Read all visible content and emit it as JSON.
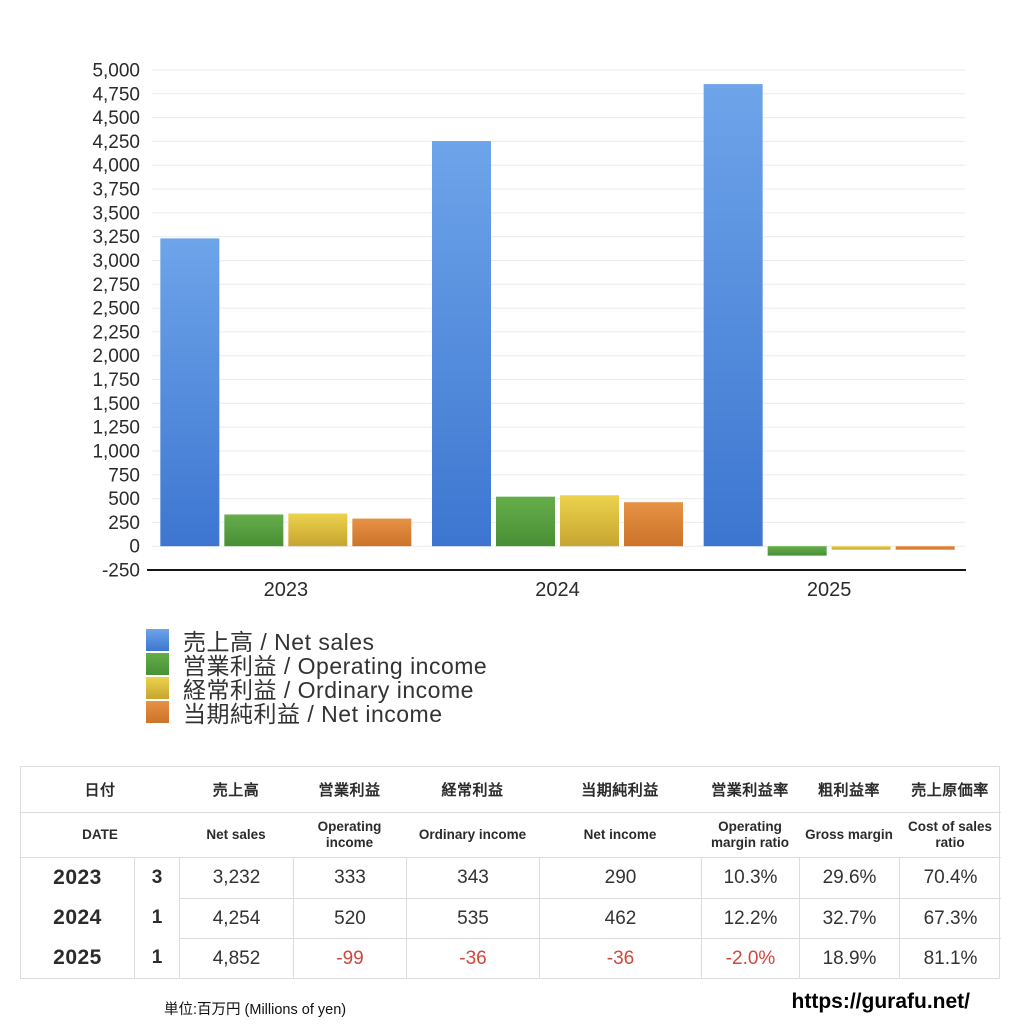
{
  "chart_data": {
    "type": "bar",
    "title": "",
    "xlabel": "",
    "ylabel": "",
    "categories": [
      "2023",
      "2024",
      "2025"
    ],
    "series": [
      {
        "name": "売上高 / Net sales",
        "values": [
          3232,
          4254,
          4852
        ],
        "color_top": "#6ea4e9",
        "color_bottom": "#3d76d1"
      },
      {
        "name": "営業利益 / Operating income",
        "values": [
          333,
          520,
          -99
        ],
        "color_top": "#66ae4b",
        "color_bottom": "#478f34"
      },
      {
        "name": "経常利益 / Ordinary income",
        "values": [
          343,
          535,
          -36
        ],
        "color_top": "#ecd24d",
        "color_bottom": "#c7a531"
      },
      {
        "name": "当期純利益 / Net income",
        "values": [
          290,
          462,
          -36
        ],
        "color_top": "#e69245",
        "color_bottom": "#cc7329"
      }
    ],
    "ylim": [
      -250,
      5000
    ],
    "ytick_step": 250,
    "grid": true,
    "legend_position": "bottom-left"
  },
  "table": {
    "headers": [
      {
        "jp": "日付",
        "en": "DATE"
      },
      {
        "jp": "売上高",
        "en": "Net sales"
      },
      {
        "jp": "営業利益",
        "en": "Operating income"
      },
      {
        "jp": "経常利益",
        "en": "Ordinary income"
      },
      {
        "jp": "当期純利益",
        "en": "Net income"
      },
      {
        "jp": "営業利益率",
        "en": "Operating margin ratio"
      },
      {
        "jp": "粗利益率",
        "en": "Gross margin"
      },
      {
        "jp": "売上原価率",
        "en": "Cost of sales ratio"
      }
    ],
    "rows": [
      {
        "year": "2023",
        "month": "3",
        "values": [
          "3,232",
          "333",
          "343",
          "290",
          "10.3%",
          "29.6%",
          "70.4%"
        ]
      },
      {
        "year": "2024",
        "month": "1",
        "values": [
          "4,254",
          "520",
          "535",
          "462",
          "12.2%",
          "32.7%",
          "67.3%"
        ]
      },
      {
        "year": "2025",
        "month": "1",
        "values": [
          "4,852",
          "-99",
          "-36",
          "-36",
          "-2.0%",
          "18.9%",
          "81.1%"
        ]
      }
    ]
  },
  "footer": {
    "unit_note": "単位:百万円 (Millions of yen)",
    "site_url": "https://gurafu.net/"
  },
  "colors": {
    "negative_text": "#d0473b",
    "grid_line": "#ebebeb",
    "axis_line": "#161616",
    "tick_text": "#2a2a2a"
  }
}
